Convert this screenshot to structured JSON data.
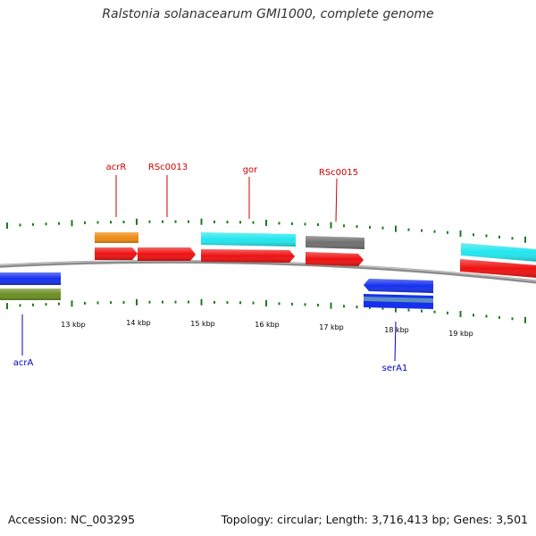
{
  "title": "Ralstonia solanacearum GMI1000, complete genome",
  "footer": {
    "accession": "Accession: NC_003295",
    "summary": "Topology: circular; Length: 3,716,413 bp; Genes: 3,501"
  },
  "colors": {
    "backbone": "#8c8c8c",
    "tick": "#1f7a1f",
    "label_forward": "#cc0000",
    "label_reverse": "#0000cc",
    "cds": "#ee1111",
    "gene_orange": "#ee8a10",
    "gene_cyan": "#22e6ee",
    "gene_gray": "#707070",
    "gene_blue": "#1530ee",
    "gene_olive": "#6b8e23",
    "gene_steelblue": "#5a8fc0"
  },
  "scale_labels": [
    "13 kbp",
    "14 kbp",
    "15 kbp",
    "16 kbp",
    "17 kbp",
    "18 kbp",
    "19 kbp"
  ],
  "gene_labels": [
    {
      "name": "acrR",
      "strand": "forward"
    },
    {
      "name": "RSc0013",
      "strand": "forward"
    },
    {
      "name": "gor",
      "strand": "forward"
    },
    {
      "name": "RSc0015",
      "strand": "forward"
    },
    {
      "name": "acrA",
      "strand": "reverse"
    },
    {
      "name": "serA1",
      "strand": "reverse"
    }
  ]
}
